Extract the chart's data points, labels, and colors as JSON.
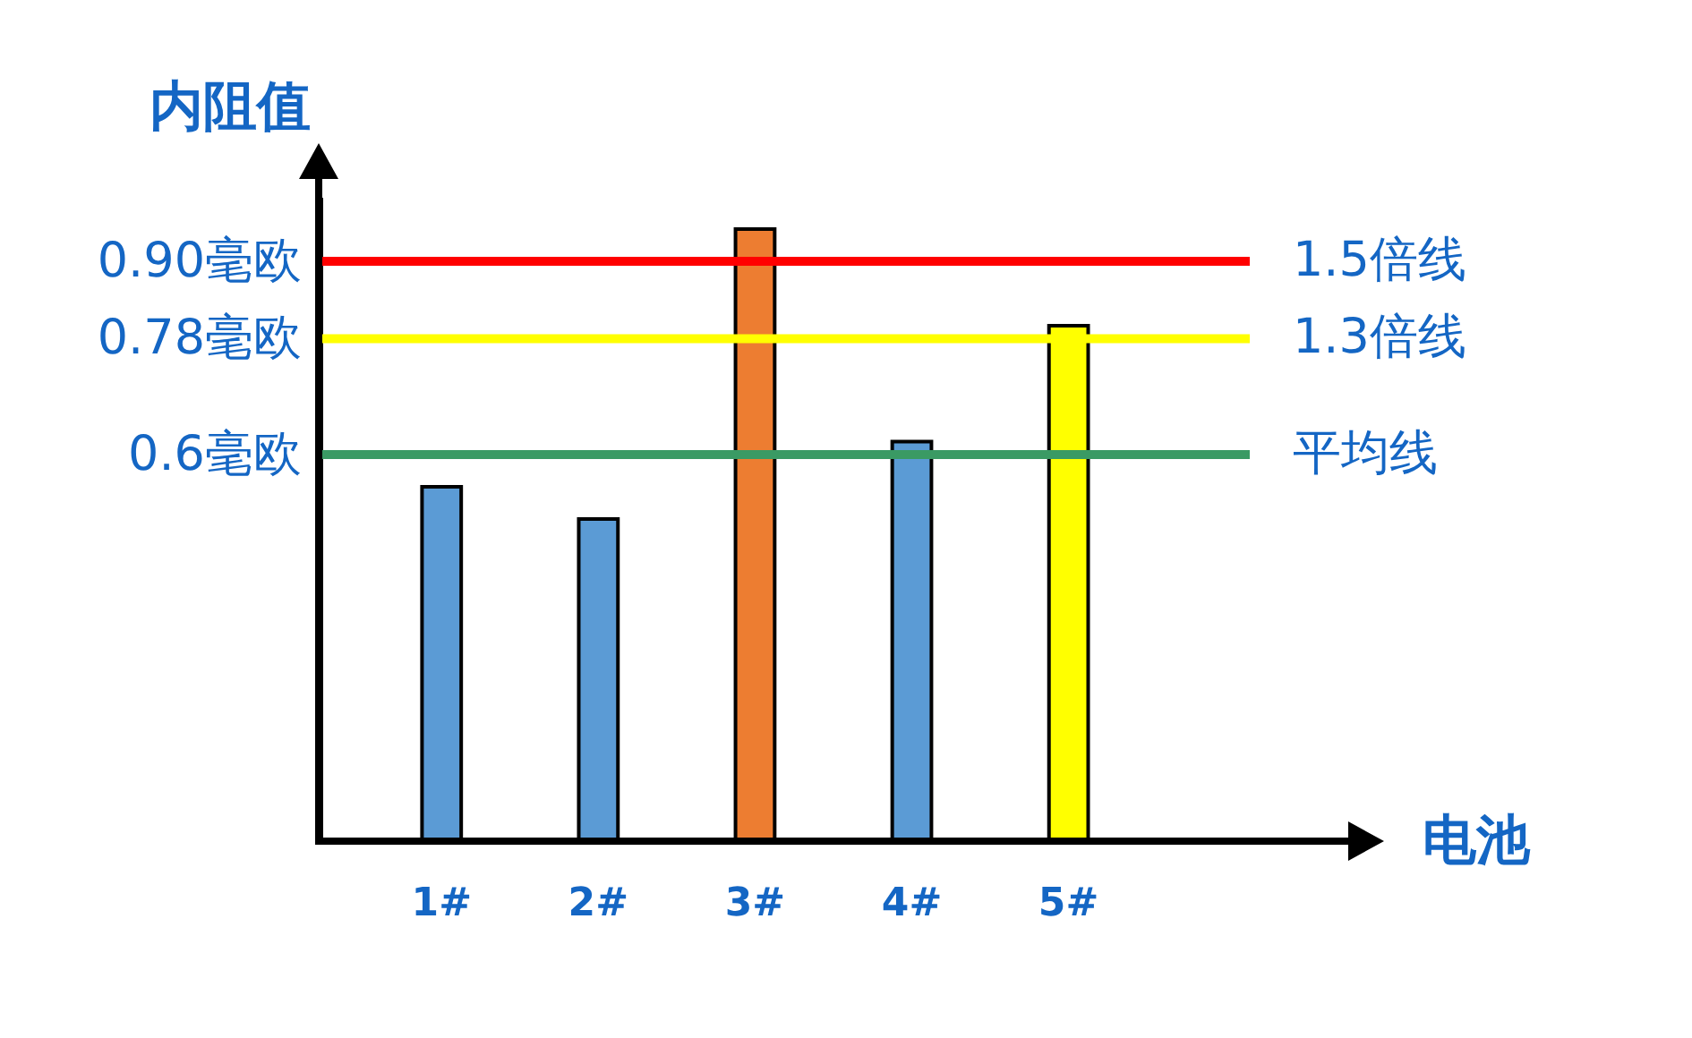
{
  "chart_data": {
    "type": "bar",
    "xlabel": "电池",
    "ylabel": "内阻值",
    "categories": [
      "1#",
      "2#",
      "3#",
      "4#",
      "5#"
    ],
    "values": [
      0.55,
      0.5,
      0.95,
      0.62,
      0.8
    ],
    "colors": [
      "#5b9bd5",
      "#5b9bd5",
      "#ed7d31",
      "#5b9bd5",
      "#ffff00"
    ],
    "ylim": [
      0,
      1.0
    ],
    "yticks": [
      {
        "value": 0.6,
        "label": "0.6毫欧"
      },
      {
        "value": 0.78,
        "label": "0.78毫欧"
      },
      {
        "value": 0.9,
        "label": "0.90毫欧"
      }
    ],
    "ref_lines": [
      {
        "axis": "y",
        "value": 0.9,
        "label": "1.5倍线",
        "color": "#ff0000"
      },
      {
        "axis": "y",
        "value": 0.78,
        "label": "1.3倍线",
        "color": "#ffff00"
      },
      {
        "axis": "y",
        "value": 0.6,
        "label": "平均线",
        "color": "#3a9a64"
      }
    ],
    "grid": false
  }
}
